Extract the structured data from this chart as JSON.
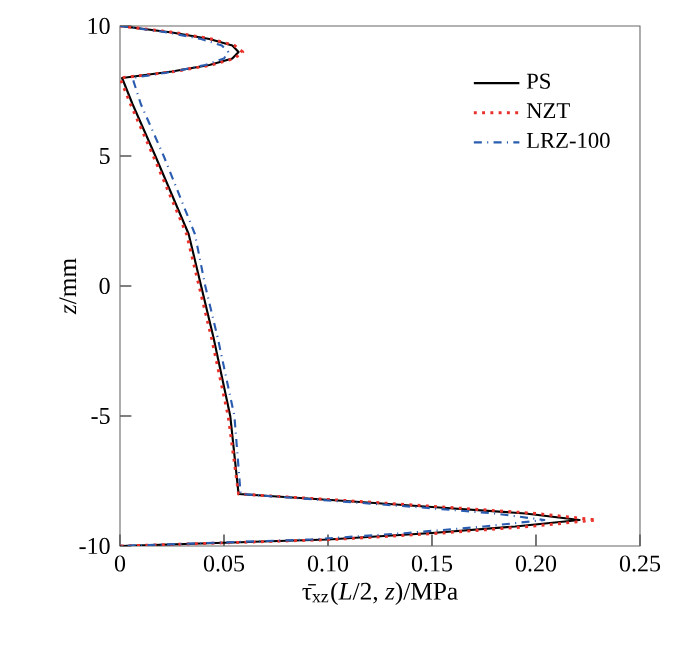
{
  "chart_data": {
    "type": "line",
    "xlabel": "τ̄$_{xz}$(*L*/2, *z*)/MPa",
    "ylabel": "*z*/mm",
    "xlim": [
      0,
      0.25
    ],
    "ylim": [
      -10,
      10
    ],
    "xticks": [
      0,
      {
        "value": 0.05,
        "label": "0.05"
      },
      {
        "value": 0.1,
        "label": "0.10"
      },
      {
        "value": 0.15,
        "label": "0.15"
      },
      {
        "value": 0.2,
        "label": "0.20"
      },
      {
        "value": 0.25,
        "label": "0.25"
      }
    ],
    "yticks": [
      -10,
      -5,
      0,
      5,
      10
    ],
    "grid": false,
    "legend": "top right",
    "marker": "none",
    "series": [
      {
        "name": "PS",
        "color": "#000000",
        "line_style": "solid",
        "x": [
          0,
          0.025,
          0.043,
          0.054,
          0.057,
          0.054,
          0.043,
          0.025,
          0.001,
          0.006,
          0.017,
          0.033,
          0.039,
          0.045,
          0.053,
          0.057,
          0.105,
          0.15,
          0.195,
          0.221,
          0.19,
          0.15,
          0.1,
          0
        ],
        "values": [
          10,
          9.75,
          9.5,
          9.25,
          9,
          8.75,
          8.5,
          8.25,
          8,
          7,
          5,
          2,
          0,
          -2,
          -5,
          -8,
          -8.25,
          -8.5,
          -8.75,
          -9,
          -9.25,
          -9.5,
          -9.75,
          -10
        ]
      },
      {
        "name": "NZT",
        "color": "#e8312a",
        "line_style": "dotted",
        "x": [
          0,
          0.026,
          0.044,
          0.055,
          0.059,
          0.055,
          0.044,
          0.026,
          0,
          0.005,
          0.016,
          0.032,
          0.038,
          0.044,
          0.052,
          0.057,
          0.108,
          0.155,
          0.2,
          0.229,
          0.197,
          0.155,
          0.103,
          0
        ],
        "values": [
          10,
          9.75,
          9.5,
          9.25,
          9,
          8.75,
          8.5,
          8.25,
          8,
          7,
          5,
          2,
          0,
          -2,
          -5,
          -8,
          -8.25,
          -8.5,
          -8.75,
          -9,
          -9.25,
          -9.5,
          -9.75,
          -10
        ]
      },
      {
        "name": "LRZ-100",
        "color": "#2a5cb0",
        "line_style": "dashdot",
        "x": [
          0,
          0.023,
          0.039,
          0.049,
          0.052,
          0.05,
          0.041,
          0.026,
          0.006,
          0.01,
          0.021,
          0.036,
          0.041,
          0.047,
          0.055,
          0.058,
          0.1,
          0.142,
          0.18,
          0.204,
          0.175,
          0.138,
          0.092,
          0
        ],
        "values": [
          10,
          9.75,
          9.5,
          9.25,
          9,
          8.75,
          8.5,
          8.25,
          8,
          7,
          5,
          2,
          0,
          -2,
          -5,
          -8,
          -8.25,
          -8.5,
          -8.75,
          -9,
          -9.25,
          -9.5,
          -9.75,
          -10
        ]
      }
    ]
  }
}
